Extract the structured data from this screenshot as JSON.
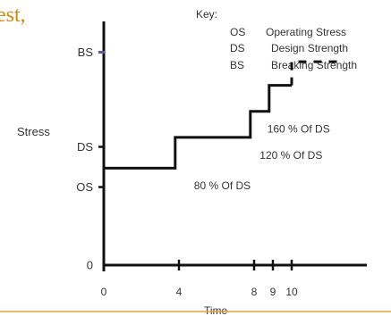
{
  "header_fragment": "est,",
  "colors": {
    "title": "#c98a12",
    "axis": "#111111",
    "step": "#111111",
    "breaking_marker": "#5a5aa0",
    "footer_rule": "#e2a23a",
    "text": "#333333"
  },
  "key": {
    "title": "Key:",
    "rows": [
      {
        "abbr": "OS",
        "desc": "Operating Stress"
      },
      {
        "abbr": "DS",
        "desc": "Design Strength"
      },
      {
        "abbr": "BS",
        "desc": "Breaking Strength"
      }
    ]
  },
  "chart_data": {
    "type": "line",
    "xlabel": "Time",
    "ylabel": "Stress",
    "xlim": [
      0,
      14
    ],
    "ylim": [
      0,
      10
    ],
    "x_ticks": [
      0,
      4,
      8,
      9,
      10
    ],
    "y_ticks": [
      {
        "label": "0",
        "value": 0
      },
      {
        "label": "OS",
        "value": 3.3
      },
      {
        "label": "DS",
        "value": 5.0
      },
      {
        "label": "BS",
        "value": 9.0
      }
    ],
    "series": [
      {
        "style": "solid",
        "points": [
          [
            0,
            4.1
          ],
          [
            3.8,
            4.1
          ],
          [
            3.8,
            5.4
          ],
          [
            7.8,
            5.4
          ],
          [
            7.8,
            6.5
          ],
          [
            8.8,
            6.5
          ],
          [
            8.8,
            7.6
          ],
          [
            10.0,
            7.6
          ]
        ]
      },
      {
        "style": "dashed",
        "points": [
          [
            10.0,
            7.6
          ],
          [
            10.0,
            8.6
          ],
          [
            12.8,
            8.6
          ]
        ]
      }
    ],
    "annotations": [
      {
        "text": "80 % Of DS",
        "x": 4.8,
        "y": 3.2
      },
      {
        "text": "120 % Of DS",
        "x": 8.3,
        "y": 4.5
      },
      {
        "text": "160 % Of DS",
        "x": 8.7,
        "y": 5.6
      }
    ]
  }
}
